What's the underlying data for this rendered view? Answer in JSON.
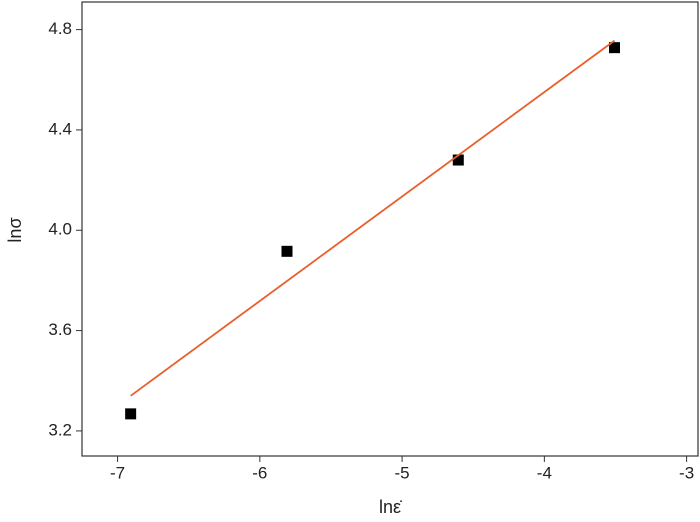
{
  "chart_data": {
    "type": "scatter",
    "xlabel": "lnε̇",
    "ylabel": "lnσ",
    "xlim": [
      -7.25,
      -2.92
    ],
    "ylim": [
      3.1,
      4.91
    ],
    "xticks": [
      -7,
      -6,
      -5,
      -4,
      -3
    ],
    "yticks": [
      3.2,
      3.6,
      {
        "value": 4,
        "label": "4.0"
      },
      4.4,
      4.8
    ],
    "series": [
      {
        "type": "scatter",
        "color": "#000000",
        "x": [
          -6.908,
          -5.809,
          -4.605,
          -3.507
        ],
        "values": [
          3.268,
          3.916,
          4.28,
          4.728
        ]
      },
      {
        "type": "line",
        "color": "#e8602c",
        "x": [
          -6.908,
          -3.507
        ],
        "values": [
          3.34,
          4.756
        ]
      }
    ]
  }
}
